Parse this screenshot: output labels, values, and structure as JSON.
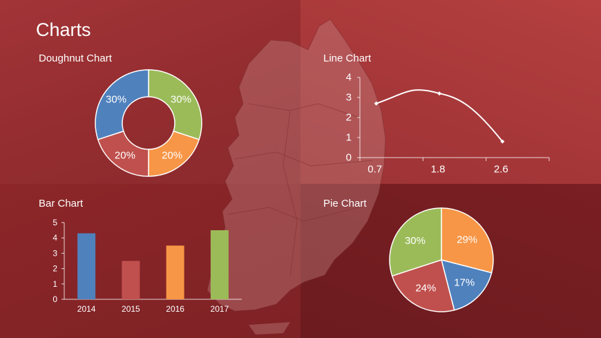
{
  "slide": {
    "title": "Charts"
  },
  "chart_data": [
    {
      "type": "pie",
      "variant": "doughnut",
      "title": "Doughnut Chart",
      "slices": [
        {
          "label": "30%",
          "value": 30,
          "color": "#9bbb59"
        },
        {
          "label": "20%",
          "value": 20,
          "color": "#f79646"
        },
        {
          "label": "20%",
          "value": 20,
          "color": "#c0504d"
        },
        {
          "label": "30%",
          "value": 30,
          "color": "#4f81bd"
        }
      ]
    },
    {
      "type": "line",
      "title": "Line Chart",
      "x": [
        0.7,
        1.8,
        2.6
      ],
      "x_tick_labels": [
        "0.7",
        "1.8",
        "2.6"
      ],
      "y": [
        2.7,
        3.2,
        0.8
      ],
      "ylim": [
        0,
        4
      ],
      "y_ticks": [
        0,
        1,
        2,
        3,
        4
      ],
      "line_color": "#ffffff"
    },
    {
      "type": "bar",
      "title": "Bar Chart",
      "categories": [
        "2014",
        "2015",
        "2016",
        "2017"
      ],
      "values": [
        4.3,
        2.5,
        3.5,
        4.5
      ],
      "colors": [
        "#4f81bd",
        "#c0504d",
        "#f79646",
        "#9bbb59"
      ],
      "ylim": [
        0,
        5
      ],
      "y_ticks": [
        0,
        1,
        2,
        3,
        4,
        5
      ]
    },
    {
      "type": "pie",
      "title": "Pie Chart",
      "slices": [
        {
          "label": "29%",
          "value": 29,
          "color": "#f79646"
        },
        {
          "label": "17%",
          "value": 17,
          "color": "#4f81bd"
        },
        {
          "label": "24%",
          "value": 24,
          "color": "#c0504d"
        },
        {
          "label": "30%",
          "value": 30,
          "color": "#9bbb59"
        }
      ]
    }
  ]
}
